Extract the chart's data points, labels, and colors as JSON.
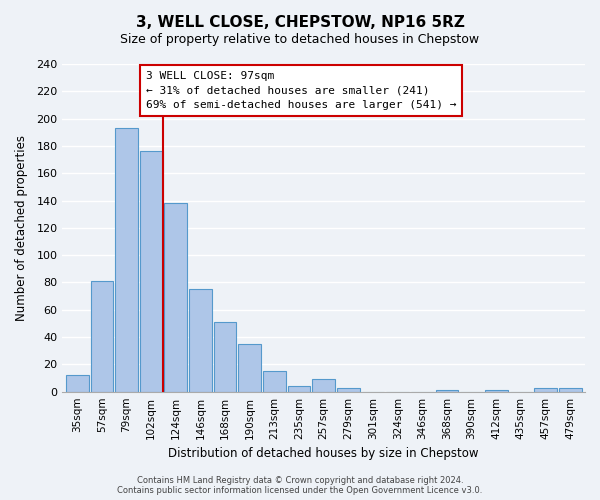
{
  "title": "3, WELL CLOSE, CHEPSTOW, NP16 5RZ",
  "subtitle": "Size of property relative to detached houses in Chepstow",
  "xlabel": "Distribution of detached houses by size in Chepstow",
  "ylabel": "Number of detached properties",
  "bar_labels": [
    "35sqm",
    "57sqm",
    "79sqm",
    "102sqm",
    "124sqm",
    "146sqm",
    "168sqm",
    "190sqm",
    "213sqm",
    "235sqm",
    "257sqm",
    "279sqm",
    "301sqm",
    "324sqm",
    "346sqm",
    "368sqm",
    "390sqm",
    "412sqm",
    "435sqm",
    "457sqm",
    "479sqm"
  ],
  "bar_values": [
    12,
    81,
    193,
    176,
    138,
    75,
    51,
    35,
    15,
    4,
    9,
    3,
    0,
    0,
    0,
    1,
    0,
    1,
    0,
    3,
    3
  ],
  "bar_color": "#aec6e8",
  "bar_edge_color": "#5599cc",
  "vline_x_index": 3,
  "vline_color": "#cc0000",
  "ylim": [
    0,
    240
  ],
  "yticks": [
    0,
    20,
    40,
    60,
    80,
    100,
    120,
    140,
    160,
    180,
    200,
    220,
    240
  ],
  "annotation_title": "3 WELL CLOSE: 97sqm",
  "annotation_line1": "← 31% of detached houses are smaller (241)",
  "annotation_line2": "69% of semi-detached houses are larger (541) →",
  "footer_line1": "Contains HM Land Registry data © Crown copyright and database right 2024.",
  "footer_line2": "Contains public sector information licensed under the Open Government Licence v3.0.",
  "background_color": "#eef2f7",
  "grid_color": "#ffffff"
}
